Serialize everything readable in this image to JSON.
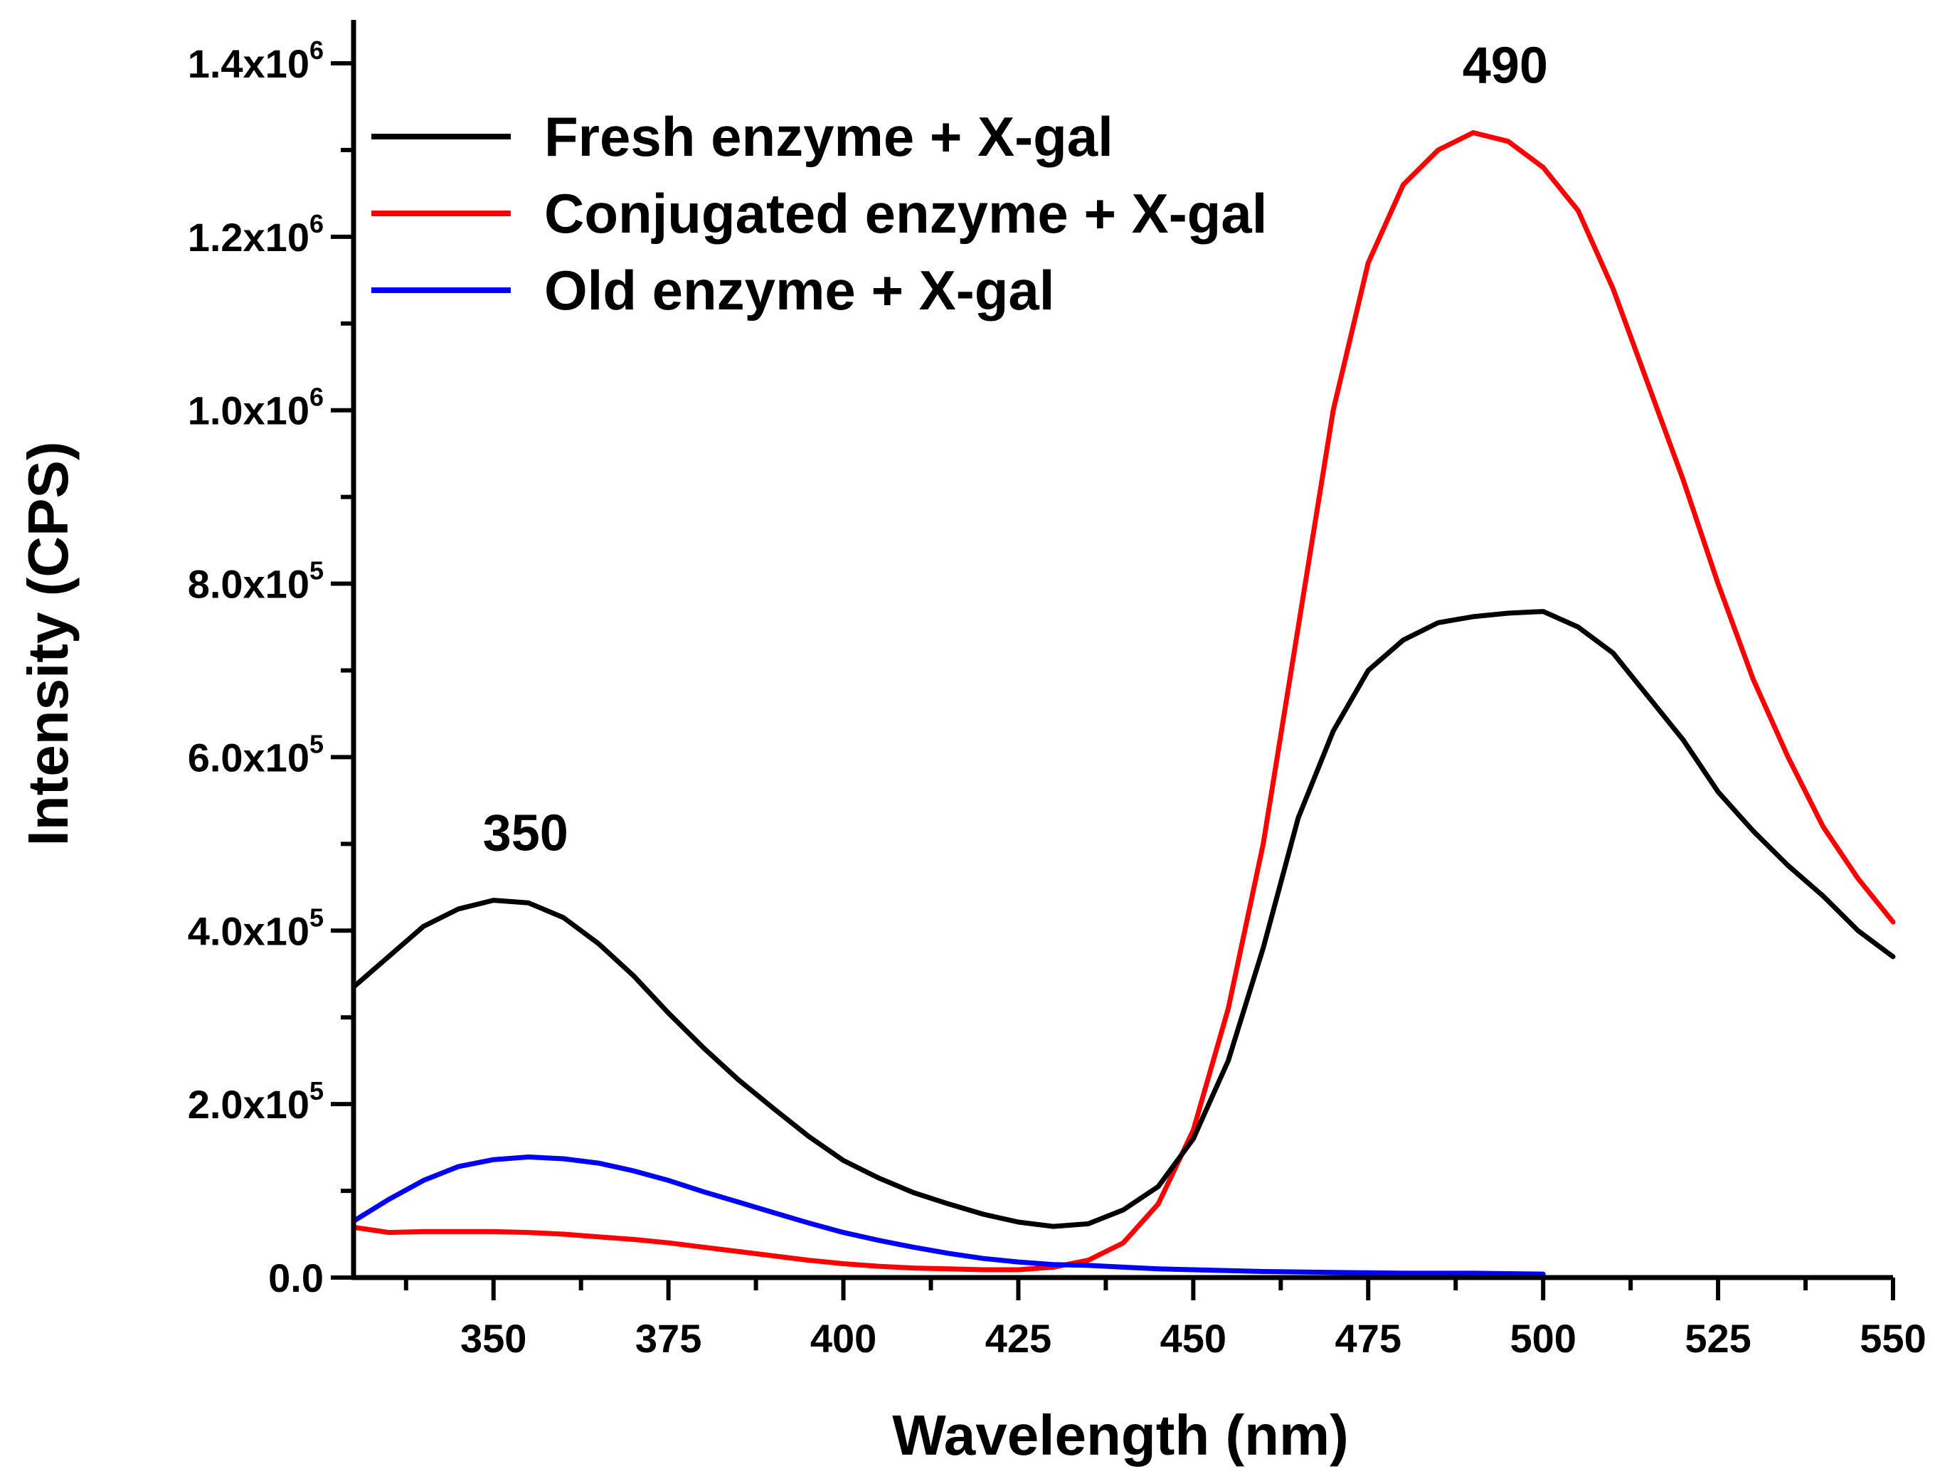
{
  "chart_data": {
    "type": "line",
    "title": "",
    "xlabel": "Wavelength (nm)",
    "ylabel": "Intensity (CPS)",
    "xlim": [
      330,
      550
    ],
    "ylim": [
      0,
      1450000
    ],
    "x_ticks": [
      350,
      375,
      400,
      425,
      450,
      475,
      500,
      525,
      550
    ],
    "y_ticks": [
      {
        "value": 0,
        "mantissa": "0.0",
        "base": "",
        "exp": ""
      },
      {
        "value": 200000,
        "mantissa": "2.0x10",
        "base": "",
        "exp": "5"
      },
      {
        "value": 400000,
        "mantissa": "4.0x10",
        "base": "",
        "exp": "5"
      },
      {
        "value": 600000,
        "mantissa": "6.0x10",
        "base": "",
        "exp": "5"
      },
      {
        "value": 800000,
        "mantissa": "8.0x10",
        "base": "",
        "exp": "5"
      },
      {
        "value": 1000000,
        "mantissa": "1.0x10",
        "base": "",
        "exp": "6"
      },
      {
        "value": 1200000,
        "mantissa": "1.2x10",
        "base": "",
        "exp": "6"
      },
      {
        "value": 1400000,
        "mantissa": "1.4x10",
        "base": "",
        "exp": "6"
      }
    ],
    "grid": false,
    "legend_position": "top-left",
    "series": [
      {
        "name": "Fresh enzyme + X-gal",
        "color": "#000000",
        "x": [
          330,
          335,
          340,
          345,
          350,
          355,
          360,
          365,
          370,
          375,
          380,
          385,
          390,
          395,
          400,
          405,
          410,
          415,
          420,
          425,
          430,
          435,
          440,
          445,
          450,
          455,
          460,
          465,
          470,
          475,
          480,
          485,
          490,
          495,
          500,
          505,
          510,
          515,
          520,
          525,
          530,
          535,
          540,
          545,
          550
        ],
        "y": [
          335000,
          370000,
          405000,
          425000,
          435000,
          432000,
          415000,
          385000,
          348000,
          305000,
          265000,
          228000,
          195000,
          163000,
          135000,
          115000,
          98000,
          85000,
          73000,
          64000,
          59000,
          62000,
          78000,
          105000,
          160000,
          250000,
          380000,
          530000,
          630000,
          700000,
          735000,
          755000,
          762000,
          766000,
          768000,
          750000,
          720000,
          670000,
          620000,
          560000,
          515000,
          475000,
          440000,
          400000,
          370000
        ]
      },
      {
        "name": "Conjugated enzyme + X-gal",
        "color": "#ff0000",
        "x": [
          330,
          335,
          340,
          345,
          350,
          355,
          360,
          365,
          370,
          375,
          380,
          385,
          390,
          395,
          400,
          405,
          410,
          415,
          420,
          425,
          430,
          435,
          440,
          445,
          450,
          455,
          460,
          465,
          470,
          475,
          480,
          485,
          490,
          495,
          500,
          505,
          510,
          515,
          520,
          525,
          530,
          535,
          540,
          545,
          550
        ],
        "y": [
          58000,
          52000,
          53000,
          53000,
          53000,
          52000,
          50000,
          47000,
          44000,
          40000,
          35000,
          30000,
          25000,
          20000,
          16000,
          13000,
          11000,
          10000,
          9000,
          9000,
          12000,
          20000,
          40000,
          85000,
          170000,
          310000,
          500000,
          750000,
          1000000,
          1170000,
          1260000,
          1300000,
          1320000,
          1310000,
          1280000,
          1230000,
          1140000,
          1030000,
          920000,
          800000,
          690000,
          600000,
          520000,
          460000,
          410000
        ]
      },
      {
        "name": "Old enzyme + X-gal",
        "color": "#0000ff",
        "x": [
          330,
          335,
          340,
          345,
          350,
          355,
          360,
          365,
          370,
          375,
          380,
          385,
          390,
          395,
          400,
          405,
          410,
          415,
          420,
          425,
          430,
          435,
          440,
          445,
          450,
          455,
          460,
          465,
          470,
          475,
          480,
          485,
          490,
          495,
          500
        ],
        "y": [
          65000,
          90000,
          112000,
          128000,
          136000,
          139000,
          137000,
          132000,
          123000,
          112000,
          99000,
          87000,
          75000,
          63000,
          52000,
          43000,
          35000,
          28000,
          22000,
          18000,
          15000,
          14000,
          12000,
          10000,
          9000,
          8000,
          7000,
          6500,
          6000,
          5500,
          5000,
          5000,
          5000,
          4500,
          4000
        ]
      }
    ],
    "annotations": [
      {
        "text": "350",
        "x": 350,
        "y": 435000
      },
      {
        "text": "490",
        "x": 490,
        "y": 1320000
      }
    ]
  }
}
